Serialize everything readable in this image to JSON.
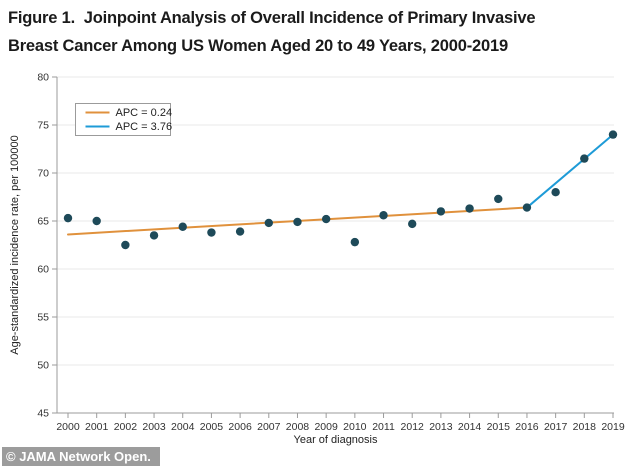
{
  "figure": {
    "title_line1": "Figure 1.  Joinpoint Analysis of Overall Incidence of Primary Invasive",
    "title_line2": "Breast Cancer Among US Women Aged 20 to 49 Years, 2000-2019"
  },
  "chart_data": {
    "type": "scatter",
    "title": "Joinpoint Analysis of Overall Incidence of Primary Invasive Breast Cancer Among US Women Aged 20 to 49 Years, 2000-2019",
    "xlabel": "Year of diagnosis",
    "ylabel": "Age-standardized incidence rate, per 100000",
    "ylim": [
      45,
      80
    ],
    "yticks": [
      45,
      50,
      55,
      60,
      65,
      70,
      75,
      80
    ],
    "grid_on": true,
    "years": [
      2000,
      2001,
      2002,
      2003,
      2004,
      2005,
      2006,
      2007,
      2008,
      2009,
      2010,
      2011,
      2012,
      2013,
      2014,
      2015,
      2016,
      2017,
      2018,
      2019
    ],
    "observed_rates": [
      65.3,
      65.0,
      62.5,
      63.5,
      64.4,
      63.8,
      63.9,
      64.8,
      64.9,
      65.2,
      62.8,
      65.6,
      64.7,
      66.0,
      66.3,
      67.3,
      66.4,
      68.0,
      71.5,
      74.0
    ],
    "point_color": "#1E4A59",
    "grid_color": "#E8E8E8",
    "axis_color": "#9B9B9B",
    "tick_label_color": "#333333",
    "axis_title_color": "#222222",
    "segments": [
      {
        "label": "APC = 0.24",
        "color": "#E0913C",
        "from": {
          "year": 2000,
          "rate": 63.6
        },
        "to": {
          "year": 2016,
          "rate": 66.4
        }
      },
      {
        "label": "APC = 3.76",
        "color": "#1E9BD7",
        "from": {
          "year": 2016,
          "rate": 66.4
        },
        "to": {
          "year": 2019,
          "rate": 74.0
        }
      }
    ],
    "legend": {
      "position": "top-left",
      "items": [
        {
          "label": "APC = 0.24",
          "color": "#E0913C"
        },
        {
          "label": "APC = 3.76",
          "color": "#1E9BD7"
        }
      ]
    }
  },
  "footer": {
    "credit": "© JAMA Network Open."
  }
}
